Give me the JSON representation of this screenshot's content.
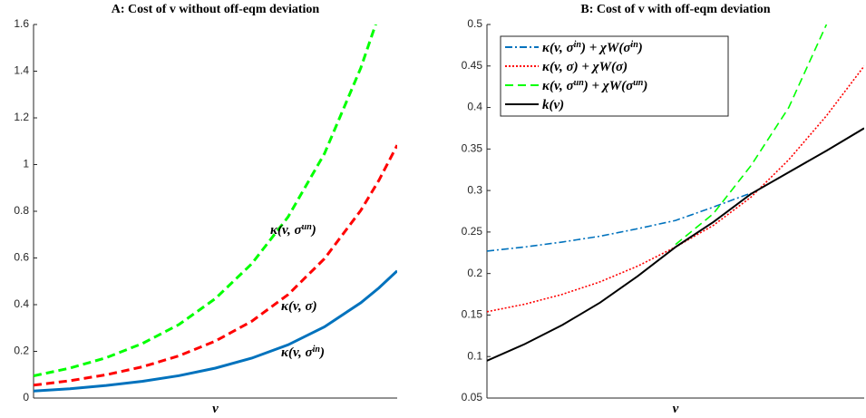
{
  "chart_data": [
    {
      "type": "line",
      "title": "A: Cost of v without off-eqm deviation",
      "xlabel": "v",
      "x": [
        0,
        0.1,
        0.2,
        0.3,
        0.4,
        0.5,
        0.6,
        0.7,
        0.8,
        0.9,
        0.95,
        1
      ],
      "xlim": [
        0,
        1
      ],
      "ylim": [
        0,
        1.6
      ],
      "yticks": [
        0,
        0.2,
        0.4,
        0.6,
        0.8,
        1,
        1.2,
        1.4,
        1.6
      ],
      "series": [
        {
          "color": "#0072bd",
          "style": "solid",
          "values": [
            0.03,
            0.04,
            0.054,
            0.072,
            0.096,
            0.128,
            0.171,
            0.228,
            0.305,
            0.408,
            0.472,
            0.545
          ]
        },
        {
          "color": "#ff0000",
          "style": "dashed",
          "values": [
            0.055,
            0.074,
            0.1,
            0.134,
            0.181,
            0.244,
            0.329,
            0.443,
            0.597,
            0.804,
            0.933,
            1.083
          ]
        },
        {
          "color": "#00ff00",
          "style": "dashed",
          "values": [
            0.095,
            0.128,
            0.173,
            0.234,
            0.315,
            0.426,
            0.575,
            0.776,
            1.047,
            1.414,
            1.642,
            null
          ]
        }
      ],
      "annotations": [
        {
          "text": [
            "κ(v, σ",
            "un",
            ")"
          ]
        },
        {
          "text": [
            "κ(v, σ)"
          ]
        },
        {
          "text": [
            "κ(v, σ",
            "in",
            ")"
          ]
        }
      ]
    },
    {
      "type": "line",
      "title": "B: Cost of v with off-eqm deviation",
      "xlabel": "v",
      "x": [
        0,
        0.1,
        0.2,
        0.3,
        0.4,
        0.5,
        0.6,
        0.7,
        0.8,
        0.9,
        1
      ],
      "xlim": [
        0,
        1
      ],
      "ylim": [
        0.05,
        0.5
      ],
      "yticks": [
        0.05,
        0.1,
        0.15,
        0.2,
        0.25,
        0.3,
        0.35,
        0.4,
        0.45,
        0.5
      ],
      "legend": "upper left",
      "series": [
        {
          "name": [
            "κ(v, σ",
            "in",
            ") + χW(σ",
            "in",
            ")"
          ],
          "color": "#0072bd",
          "style": "dashdot",
          "values": [
            0.227,
            0.232,
            0.238,
            0.245,
            0.254,
            0.264,
            0.28,
            0.297,
            null,
            null,
            null
          ]
        },
        {
          "name": [
            "κ(v, σ) + χW(σ)"
          ],
          "color": "#ff0000",
          "style": "dotted",
          "values": [
            0.154,
            0.163,
            0.175,
            0.19,
            0.209,
            0.232,
            0.258,
            0.292,
            0.337,
            0.39,
            0.45
          ]
        },
        {
          "name": [
            "κ(v, σ",
            "un",
            ") + χW(σ",
            "un",
            ")"
          ],
          "color": "#00ff00",
          "style": "dashed",
          "values": [
            null,
            null,
            null,
            null,
            null,
            0.235,
            0.272,
            0.33,
            0.4,
            0.5,
            null
          ]
        },
        {
          "name": [
            "k(v)"
          ],
          "color": "#000000",
          "style": "solid",
          "values": [
            0.095,
            0.115,
            0.138,
            0.165,
            0.197,
            0.232,
            0.262,
            0.296,
            0.322,
            0.348,
            0.375
          ]
        }
      ]
    }
  ]
}
